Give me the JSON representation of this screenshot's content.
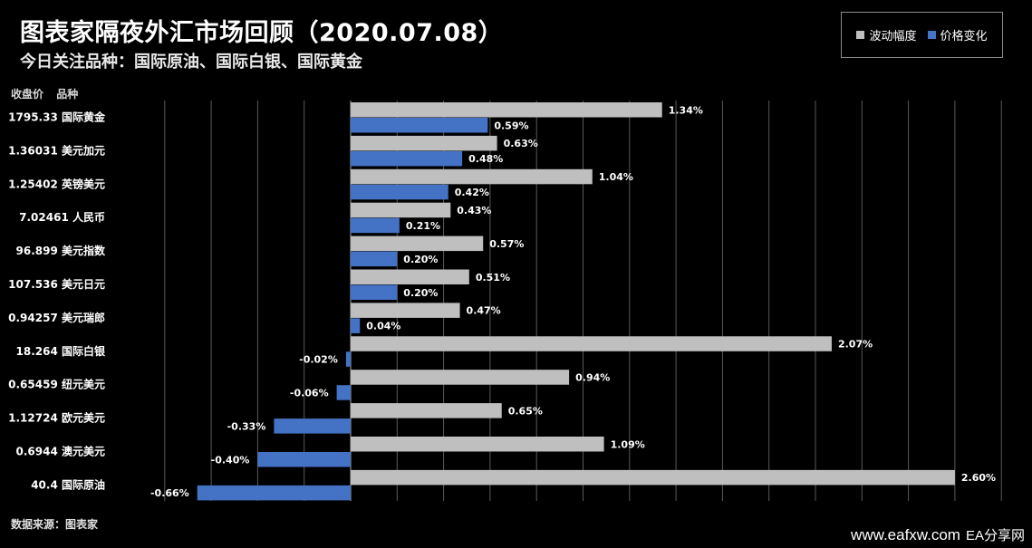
{
  "header": {
    "title": "图表家隔夜外汇市场回顾（2020.07.08）",
    "subtitle": "今日关注品种：国际原油、国际白银、国际黄金"
  },
  "columns": {
    "close_label": "收盘价",
    "name_label": "品种"
  },
  "footer": {
    "source": "数据来源：图表家"
  },
  "watermark": {
    "site": "www.eafxw.com",
    "brand": "EA分享网"
  },
  "colors": {
    "volatility": "#bfbfbf",
    "change": "#4472c4",
    "grid": "#595959"
  },
  "chart_data": {
    "type": "bar",
    "orientation": "horizontal",
    "title": "图表家隔夜外汇市场回顾（2020.07.08）",
    "categories": [
      "国际黄金",
      "美元加元",
      "英镑美元",
      "人民币",
      "美元指数",
      "美元日元",
      "美元瑞郎",
      "国际白银",
      "纽元美元",
      "欧元美元",
      "澳元美元",
      "国际原油"
    ],
    "close_prices": [
      "1795.33",
      "1.36031",
      "1.25402",
      "7.02461",
      "96.899",
      "107.536",
      "0.94257",
      "18.264",
      "0.65459",
      "1.12724",
      "0.6944",
      "40.4"
    ],
    "series": [
      {
        "name": "波动幅度",
        "values": [
          1.34,
          0.63,
          1.04,
          0.43,
          0.57,
          0.51,
          0.47,
          2.07,
          0.94,
          0.65,
          1.09,
          2.6
        ],
        "labels": [
          "1.34%",
          "0.63%",
          "1.04%",
          "0.43%",
          "0.57%",
          "0.51%",
          "0.47%",
          "2.07%",
          "0.94%",
          "0.65%",
          "1.09%",
          "2.60%"
        ]
      },
      {
        "name": "价格变化",
        "values": [
          0.59,
          0.48,
          0.42,
          0.21,
          0.2,
          0.2,
          0.04,
          -0.02,
          -0.06,
          -0.33,
          -0.4,
          -0.66
        ],
        "labels": [
          "0.59%",
          "0.48%",
          "0.42%",
          "0.21%",
          "0.20%",
          "0.20%",
          "0.04%",
          "-0.02%",
          "-0.06%",
          "-0.33%",
          "-0.40%",
          "-0.66%"
        ]
      }
    ],
    "xlim": [
      -0.8,
      2.8
    ],
    "grid": true,
    "legend": "top-right"
  }
}
